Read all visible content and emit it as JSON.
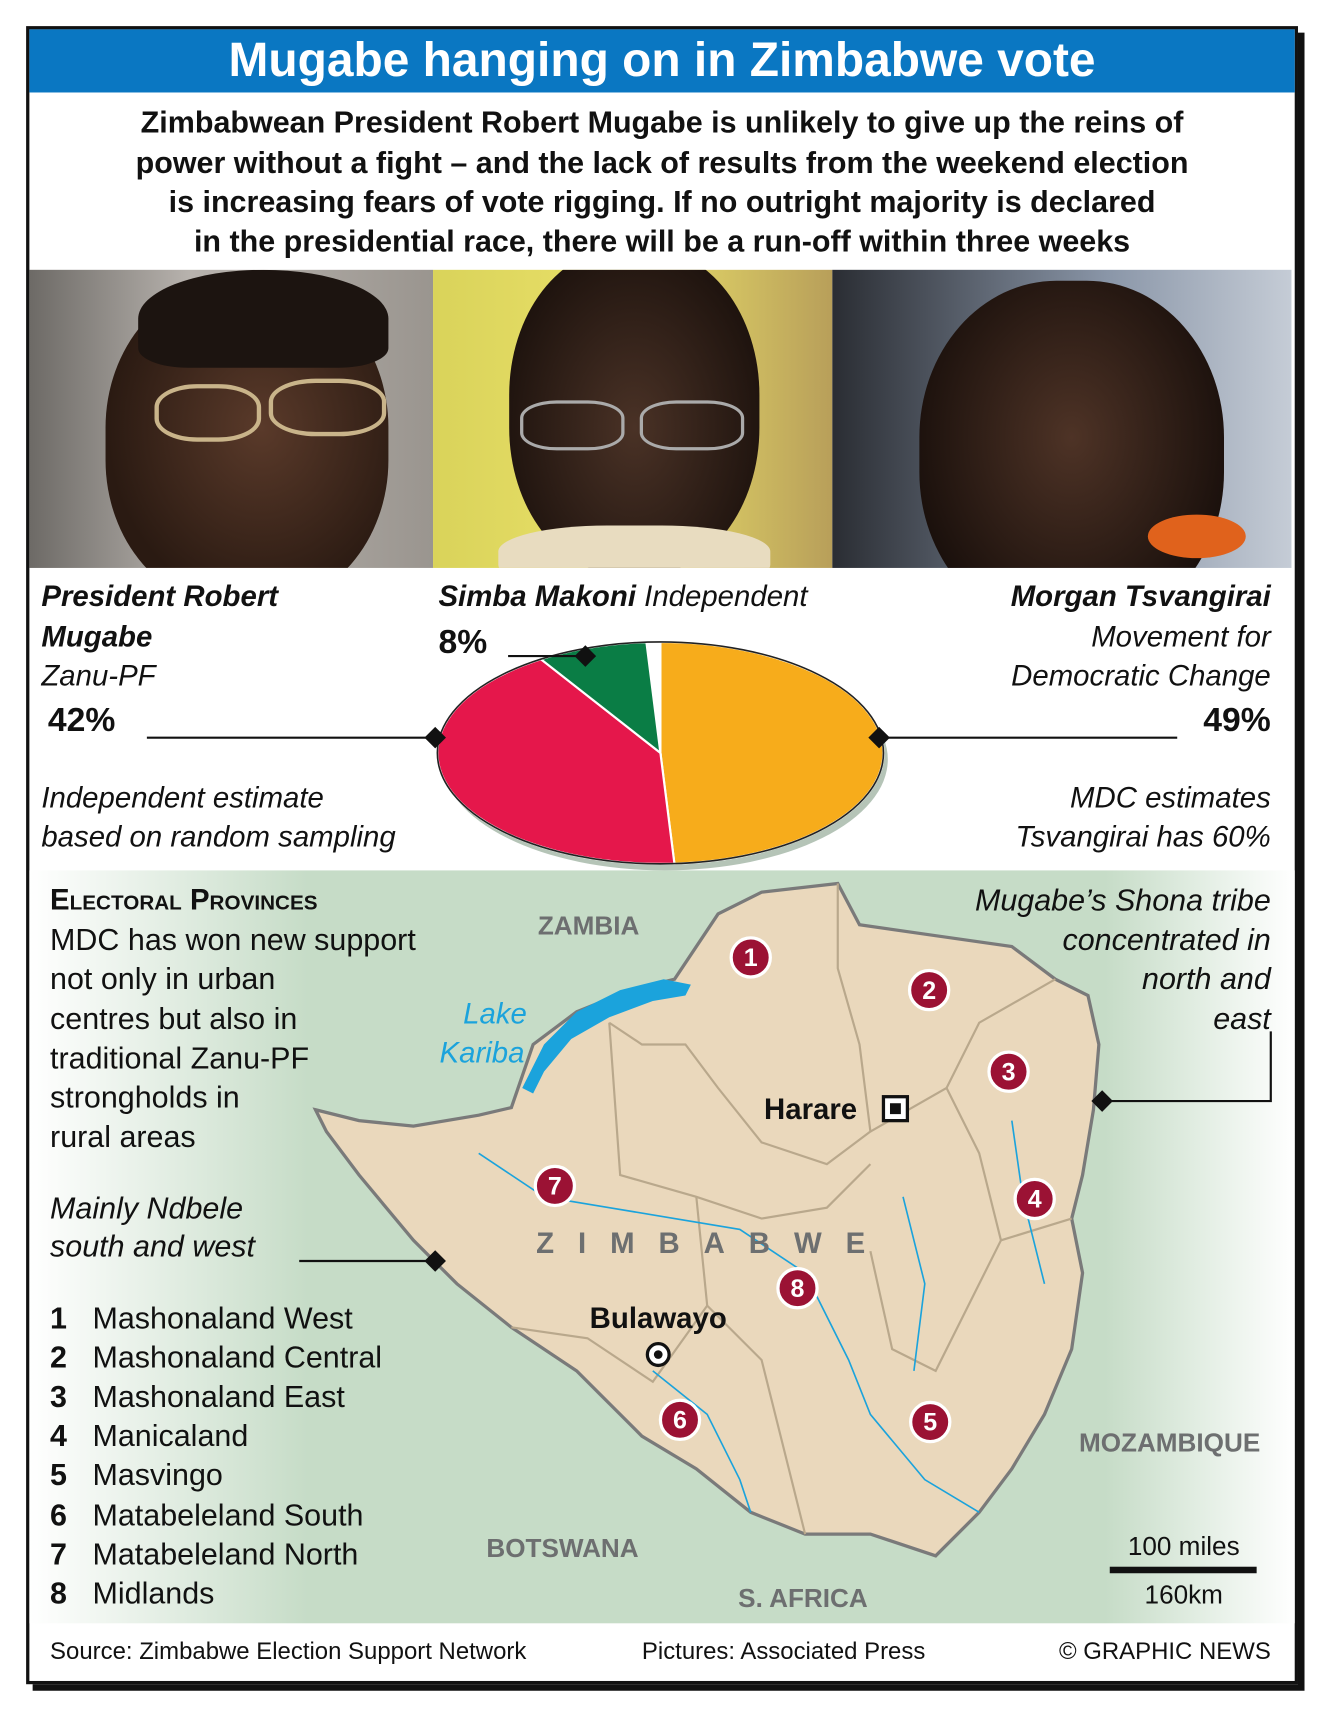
{
  "title": "Mugabe hanging on in Zimbabwe vote",
  "intro": [
    "Zimbabwean President Robert Mugabe is unlikely to give up the reins of",
    "power without a fight – and the lack of results from the weekend election",
    "is increasing fears of vote rigging. If no outright majority is declared",
    "in the presidential race, there will be a run-off within three weeks"
  ],
  "candidates": {
    "mugabe": {
      "name_line1": "President Robert",
      "name_line2": "Mugabe",
      "party": "Zanu-PF",
      "pct": "42%"
    },
    "makoni": {
      "name": "Simba Makoni",
      "party": "Independent",
      "pct": "8%"
    },
    "tsvangirai": {
      "name": "Morgan Tsvangirai",
      "party_line1": "Movement for",
      "party_line2": "Democratic Change",
      "pct": "49%"
    }
  },
  "notes": {
    "left": [
      "Independent estimate",
      "based on random sampling"
    ],
    "right": [
      "MDC estimates",
      "Tsvangirai has 60%"
    ]
  },
  "chart_data": {
    "type": "pie",
    "categories": [
      "Morgan Tsvangirai",
      "President Robert Mugabe",
      "Simba Makoni"
    ],
    "values": [
      49,
      42,
      8
    ],
    "colors": [
      "#f7ac1b",
      "#e5174b",
      "#0a7d45"
    ]
  },
  "map": {
    "heading": "Electoral Provinces",
    "description": [
      "MDC has won new support",
      "not only in urban",
      "centres but also in",
      "traditional Zanu-PF",
      "strongholds in",
      "rural areas"
    ],
    "ndbele_note": [
      "Mainly Ndbele",
      "south and west"
    ],
    "shona_note": [
      "Mugabe’s Shona tribe",
      "concentrated in",
      "north and",
      "east"
    ],
    "labels": {
      "zambia": "ZAMBIA",
      "lake1": "Lake",
      "lake2": "Kariba",
      "harare": "Harare",
      "zimbabwe": "ZIMBABWE",
      "bulawayo": "Bulawayo",
      "mozambique": "MOZAMBIQUE",
      "botswana": "BOTSWANA",
      "safrica": "S. AFRICA"
    },
    "scale": {
      "miles": "100 miles",
      "km": "160km"
    },
    "provinces": [
      {
        "num": "1",
        "name": "Mashonaland West"
      },
      {
        "num": "2",
        "name": "Mashonaland Central"
      },
      {
        "num": "3",
        "name": "Mashonaland East"
      },
      {
        "num": "4",
        "name": "Manicaland"
      },
      {
        "num": "5",
        "name": "Masvingo"
      },
      {
        "num": "6",
        "name": "Matabeleland South"
      },
      {
        "num": "7",
        "name": "Matabeleland North"
      },
      {
        "num": "8",
        "name": "Midlands"
      }
    ],
    "marker_color": "#9b1234",
    "water_color": "#1ba3dc"
  },
  "footer": {
    "source": "Source: Zimbabwe Election Support Network",
    "pictures": "Pictures: Associated Press",
    "credit": "© GRAPHIC NEWS"
  }
}
